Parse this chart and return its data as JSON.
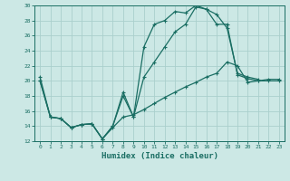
{
  "xlabel": "Humidex (Indice chaleur)",
  "xlim": [
    -0.5,
    23.5
  ],
  "ylim": [
    12,
    30
  ],
  "xticks": [
    0,
    1,
    2,
    3,
    4,
    5,
    6,
    7,
    8,
    9,
    10,
    11,
    12,
    13,
    14,
    15,
    16,
    17,
    18,
    19,
    20,
    21,
    22,
    23
  ],
  "yticks": [
    12,
    14,
    16,
    18,
    20,
    22,
    24,
    26,
    28,
    30
  ],
  "background_color": "#cce8e5",
  "grid_color": "#aacfcc",
  "line_color": "#1a6e63",
  "line_width": 0.9,
  "marker_size": 3.5,
  "line1_x": [
    0,
    1,
    2,
    3,
    4,
    5,
    6,
    7,
    8,
    9,
    10,
    11,
    12,
    13,
    14,
    15,
    16,
    17,
    18,
    19,
    20,
    21
  ],
  "line1_y": [
    20.5,
    15.2,
    15.0,
    13.8,
    14.2,
    14.3,
    12.3,
    14.0,
    18.5,
    15.2,
    24.5,
    27.5,
    28.0,
    29.2,
    29.0,
    30.0,
    29.5,
    28.8,
    27.0,
    21.0,
    20.5,
    20.2
  ],
  "line2_x": [
    0,
    1,
    2,
    3,
    4,
    5,
    6,
    7,
    8,
    9,
    10,
    11,
    12,
    13,
    14,
    15,
    16,
    17,
    18,
    19,
    20,
    21,
    22,
    23
  ],
  "line2_y": [
    20.0,
    15.2,
    15.0,
    13.8,
    14.2,
    14.3,
    12.3,
    14.0,
    18.0,
    15.2,
    20.5,
    22.5,
    24.5,
    26.5,
    27.5,
    29.8,
    29.5,
    27.5,
    27.5,
    20.8,
    20.3,
    20.0,
    20.0,
    20.0
  ],
  "line3_x": [
    0,
    1,
    2,
    3,
    4,
    5,
    6,
    7,
    8,
    9,
    10,
    11,
    12,
    13,
    14,
    15,
    16,
    17,
    18,
    19,
    20,
    21,
    22,
    23
  ],
  "line3_y": [
    20.0,
    15.2,
    15.0,
    13.8,
    14.2,
    14.3,
    12.3,
    13.8,
    15.2,
    15.5,
    16.2,
    17.0,
    17.8,
    18.5,
    19.2,
    19.8,
    20.5,
    21.0,
    22.5,
    22.0,
    19.8,
    20.0,
    20.2,
    20.2
  ]
}
